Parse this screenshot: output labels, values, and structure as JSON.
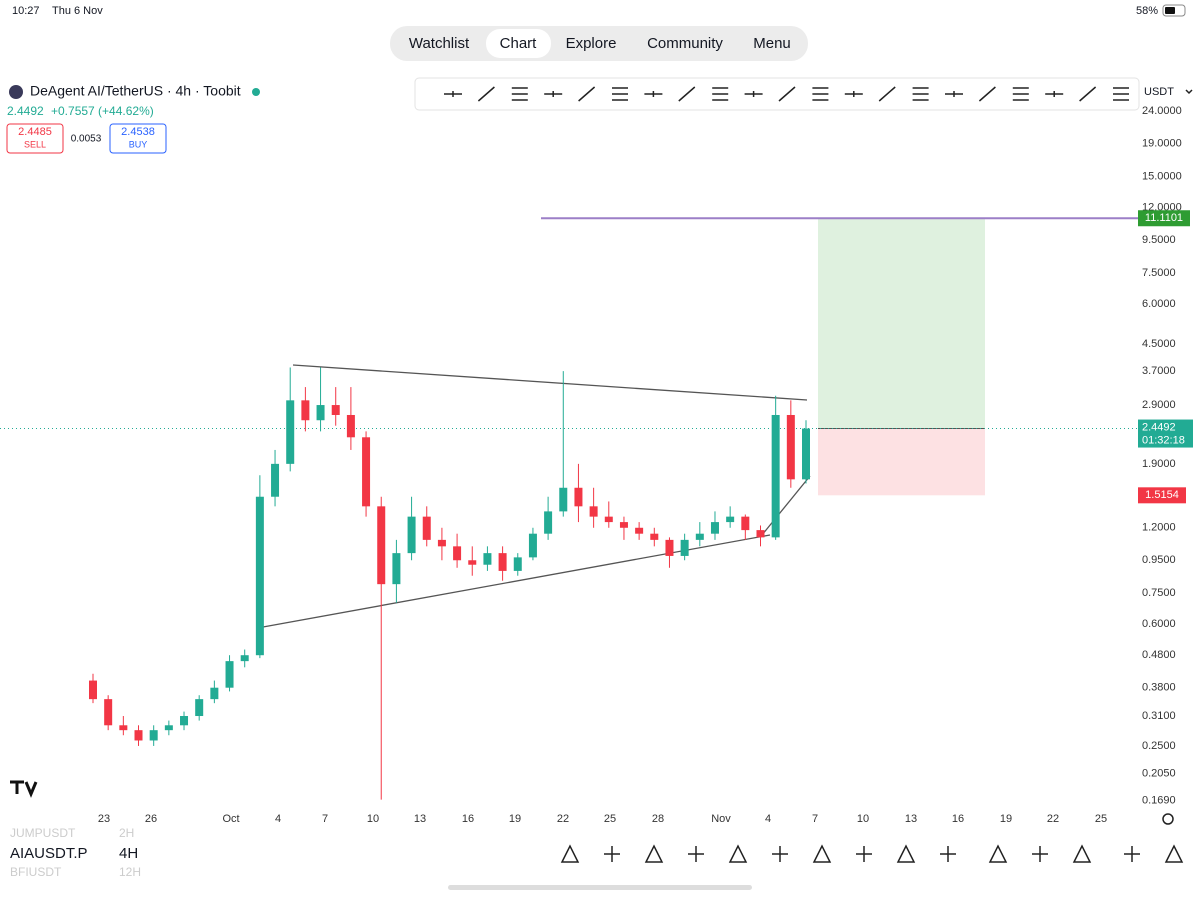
{
  "status_bar": {
    "time": "10:27",
    "date": "Thu 6 Nov",
    "battery": "58%"
  },
  "tabs": [
    "Watchlist",
    "Chart",
    "Explore",
    "Community",
    "Menu"
  ],
  "symbol": {
    "title": "DeAgent AI/TetherUS · 4h · Toobit",
    "last": "2.4492",
    "change": "+0.7557 (+44.62%)",
    "sell_price": "2.4485",
    "sell": "SELL",
    "spread": "0.0053",
    "buy_price": "2.4538",
    "buy": "BUY",
    "currency": "USDT"
  },
  "chart_data": {
    "type": "candlestick",
    "log_scale": true,
    "up_color": "#22ab94",
    "down_color": "#f23645",
    "open": [
      0.4,
      0.35,
      0.29,
      0.28,
      0.26,
      0.28,
      0.29,
      0.31,
      0.35,
      0.38,
      0.46,
      0.48,
      1.5,
      1.9,
      3.0,
      2.6,
      2.9,
      2.7,
      2.3,
      1.4,
      0.8,
      1.0,
      1.3,
      1.1,
      1.05,
      0.95,
      0.92,
      1.0,
      0.88,
      0.97,
      1.15,
      1.35,
      1.6,
      1.4,
      1.3,
      1.25,
      1.2,
      1.15,
      1.1,
      0.98,
      1.1,
      1.15,
      1.25,
      1.3,
      1.18,
      1.12,
      2.7,
      1.7
    ],
    "high": [
      0.42,
      0.36,
      0.31,
      0.29,
      0.29,
      0.3,
      0.32,
      0.36,
      0.4,
      0.48,
      0.5,
      1.75,
      2.1,
      3.8,
      3.3,
      3.8,
      3.3,
      3.3,
      2.4,
      1.5,
      1.1,
      1.5,
      1.4,
      1.2,
      1.15,
      1.05,
      1.05,
      1.05,
      1.0,
      1.2,
      1.5,
      3.7,
      1.9,
      1.6,
      1.45,
      1.3,
      1.25,
      1.2,
      1.12,
      1.15,
      1.25,
      1.35,
      1.4,
      1.32,
      1.22,
      3.1,
      3.0,
      2.6
    ],
    "low": [
      0.34,
      0.28,
      0.27,
      0.25,
      0.25,
      0.27,
      0.28,
      0.3,
      0.34,
      0.37,
      0.44,
      0.47,
      1.4,
      1.8,
      2.4,
      2.4,
      2.5,
      2.1,
      1.3,
      0.17,
      0.7,
      0.95,
      1.05,
      0.95,
      0.9,
      0.85,
      0.88,
      0.82,
      0.85,
      0.95,
      1.1,
      1.3,
      1.25,
      1.2,
      1.2,
      1.1,
      1.1,
      1.05,
      0.9,
      0.95,
      1.05,
      1.1,
      1.2,
      1.1,
      1.05,
      1.1,
      1.6,
      1.65
    ],
    "close": [
      0.35,
      0.29,
      0.28,
      0.26,
      0.28,
      0.29,
      0.31,
      0.35,
      0.38,
      0.46,
      0.48,
      1.5,
      1.9,
      3.0,
      2.6,
      2.9,
      2.7,
      2.3,
      1.4,
      0.8,
      1.0,
      1.3,
      1.1,
      1.05,
      0.95,
      0.92,
      1.0,
      0.88,
      0.97,
      1.15,
      1.35,
      1.6,
      1.4,
      1.3,
      1.25,
      1.2,
      1.15,
      1.1,
      0.98,
      1.1,
      1.15,
      1.25,
      1.3,
      1.18,
      1.12,
      2.7,
      1.7,
      2.4492
    ],
    "ylim": [
      0.16,
      26
    ],
    "yticks": [
      {
        "value": 24,
        "label": "24.0000"
      },
      {
        "value": 19,
        "label": "19.0000"
      },
      {
        "value": 15,
        "label": "15.0000"
      },
      {
        "value": 12,
        "label": "12.0000"
      },
      {
        "value": 9.5,
        "label": "9.5000"
      },
      {
        "value": 7.5,
        "label": "7.5000"
      },
      {
        "value": 6,
        "label": "6.0000"
      },
      {
        "value": 4.5,
        "label": "4.5000"
      },
      {
        "value": 3.7,
        "label": "3.7000"
      },
      {
        "value": 2.9,
        "label": "2.9000"
      },
      {
        "value": 1.9,
        "label": "1.9000"
      },
      {
        "value": 1.2,
        "label": "1.2000"
      },
      {
        "value": 0.95,
        "label": "0.9500"
      },
      {
        "value": 0.75,
        "label": "0.7500"
      },
      {
        "value": 0.6,
        "label": "0.6000"
      },
      {
        "value": 0.48,
        "label": "0.4800"
      },
      {
        "value": 0.38,
        "label": "0.3800"
      },
      {
        "value": 0.31,
        "label": "0.3100"
      },
      {
        "value": 0.25,
        "label": "0.2500"
      },
      {
        "value": 0.205,
        "label": "0.2050"
      },
      {
        "value": 0.169,
        "label": "0.1690"
      }
    ],
    "xticks": [
      "23",
      "26",
      "Oct",
      "4",
      "7",
      "10",
      "13",
      "16",
      "19",
      "22",
      "25",
      "28",
      "Nov",
      "4",
      "7",
      "10",
      "13",
      "16",
      "19",
      "22",
      "25"
    ],
    "position": {
      "target": 11.1101,
      "entry": 2.4492,
      "stop": 1.5154
    },
    "countdown": "01:32:18"
  },
  "bottom_bar": {
    "symbol": "AIAUSDT.P",
    "interval": "4H",
    "prev_symbol": "JUMPUSDT",
    "prev_interval": "2H",
    "next_symbol": "BFIUSDT",
    "next_interval": "12H"
  }
}
